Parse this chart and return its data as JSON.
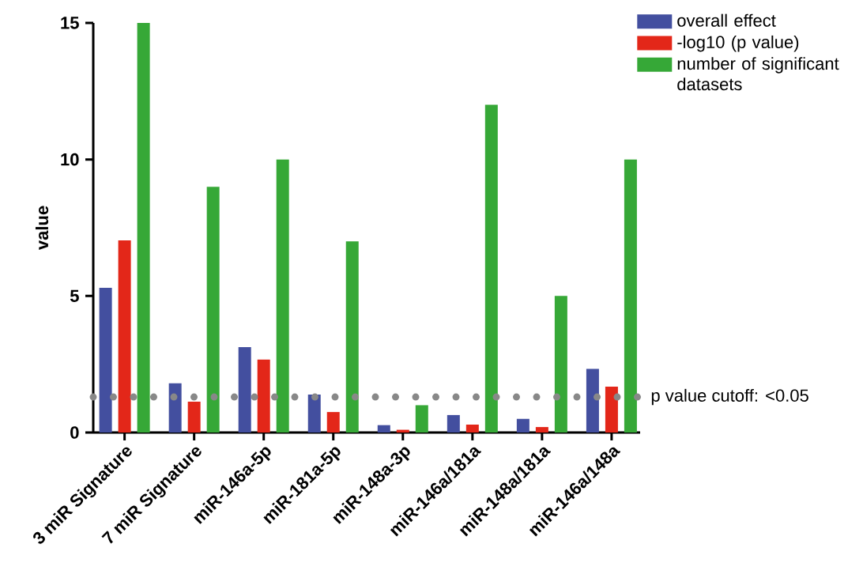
{
  "chart_data": {
    "type": "bar",
    "ylabel": "value",
    "categories": [
      "3 miR Signature",
      "7 miR Signature",
      "miR-146a-5p",
      "miR-181a-5p",
      "miR-148a-3p",
      "miR-146a/181a",
      "miR-148a/181a",
      "miR-146a/148a"
    ],
    "series": [
      {
        "name": "overall effect",
        "color": "#434f9f",
        "values": [
          5.3,
          1.8,
          3.13,
          1.39,
          0.27,
          0.64,
          0.5,
          2.33
        ]
      },
      {
        "name": "-log10 (p value)",
        "color": "#e32719",
        "values": [
          7.04,
          1.13,
          2.67,
          0.75,
          0.1,
          0.29,
          0.2,
          1.68
        ]
      },
      {
        "name": "number of significant datasets",
        "color": "#36a837",
        "values": [
          15,
          9,
          10,
          7,
          1,
          12,
          5,
          10
        ]
      }
    ],
    "ylim": [
      0,
      15
    ],
    "yticks": [
      0,
      5,
      10,
      15
    ],
    "legend": "top right",
    "ref_lines": [
      {
        "axis": "y",
        "value": 1.3,
        "label": "p value cutoff: <0.05",
        "color": "#888888",
        "line_style": "dotted"
      }
    ]
  }
}
